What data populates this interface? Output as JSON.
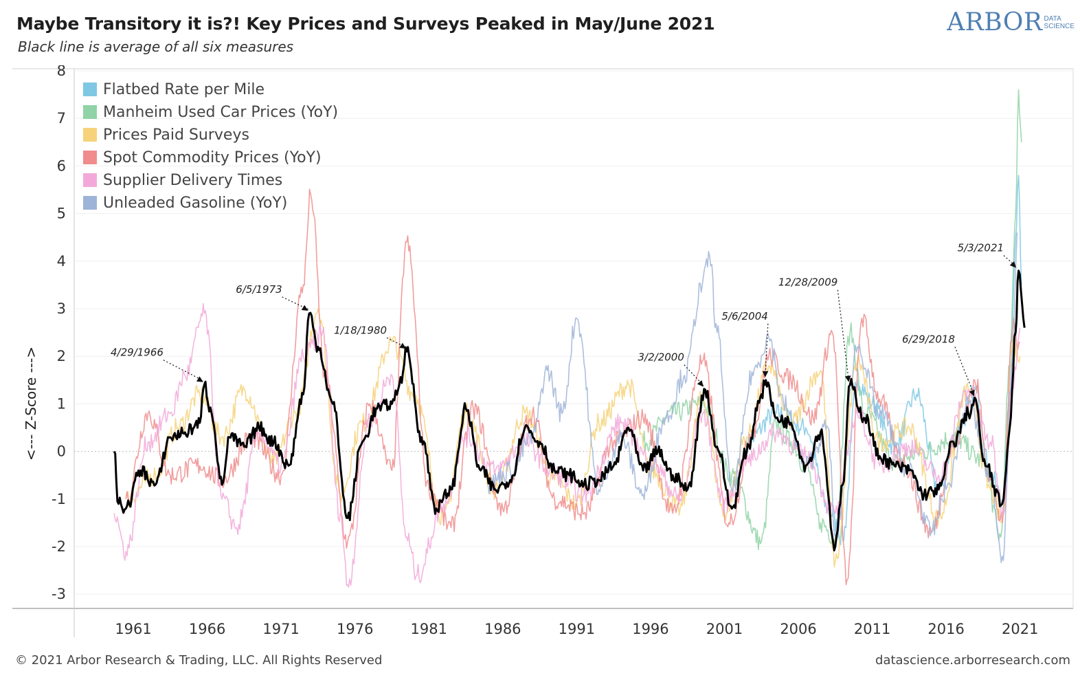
{
  "header": {
    "title": "Maybe Transitory it is?! Key Prices and Surveys Peaked in May/June 2021",
    "subtitle": "Black line is average of all six measures"
  },
  "logo": {
    "main": "ARBOR",
    "small_line1": "DATA",
    "small_line2": "SCIENCE"
  },
  "footer": {
    "copyright": "© 2021 Arbor Research & Trading, LLC. All Rights Reserved",
    "url": "datascience.arborresearch.com"
  },
  "chart_data": {
    "type": "line",
    "title": "Maybe Transitory it is?! Key Prices and Surveys Peaked in May/June 2021",
    "subtitle": "Black line is average of all six measures",
    "xlabel": "",
    "ylabel": "<--- Z-Score --->",
    "xlim": [
      1957.5,
      2025.0
    ],
    "ylim": [
      -3.3,
      8.0
    ],
    "x_ticks": [
      "1961",
      "1966",
      "1971",
      "1976",
      "1981",
      "1986",
      "1991",
      "1996",
      "2001",
      "2006",
      "2011",
      "2016",
      "2021"
    ],
    "y_ticks": [
      "8",
      "7",
      "6",
      "5",
      "4",
      "3",
      "2",
      "1",
      "0",
      "-1",
      "-2",
      "-3"
    ],
    "grid": true,
    "legend_placement": "top-left",
    "legend": [
      {
        "name": "Flatbed Rate per Mile",
        "color": "#7ec8e3"
      },
      {
        "name": "Manheim Used Car Prices (YoY)",
        "color": "#8fd3a6"
      },
      {
        "name": "Prices Paid Surveys",
        "color": "#f6d27a"
      },
      {
        "name": "Spot Commodity Prices (YoY)",
        "color": "#f08c8c"
      },
      {
        "name": "Supplier Delivery Times",
        "color": "#f2a9d9"
      },
      {
        "name": "Unleaded Gasoline (YoY)",
        "color": "#9db4d8"
      }
    ],
    "series": [
      {
        "name": "Flatbed Rate per Mile",
        "color": "#7ec8e3",
        "x": [
          2003,
          2005,
          2007,
          2008.5,
          2009.5,
          2010.5,
          2011.5,
          2013,
          2014.5,
          2016,
          2017.5,
          2018.5,
          2019.5,
          2020.3,
          2020.8,
          2021.2,
          2021.4,
          2021.6
        ],
        "y": [
          0.2,
          0.8,
          0.5,
          -1.2,
          -1.8,
          1.5,
          1.0,
          0.1,
          1.2,
          -0.8,
          0.6,
          1.3,
          -0.5,
          -1.0,
          1.0,
          4.5,
          5.8,
          3.5
        ]
      },
      {
        "name": "Manheim Used Car Prices (YoY)",
        "color": "#8fd3a6",
        "x": [
          1996,
          1998,
          2000,
          2002,
          2004,
          2005,
          2006,
          2007,
          2008,
          2009,
          2010,
          2011,
          2013,
          2015,
          2017,
          2019,
          2020.2,
          2020.8,
          2021.2,
          2021.4,
          2021.6
        ],
        "y": [
          0.2,
          0.8,
          1.0,
          -0.5,
          -1.9,
          0.6,
          0.2,
          -0.3,
          -1.5,
          -1.8,
          2.5,
          0.8,
          -0.2,
          0.0,
          0.3,
          -0.2,
          -1.8,
          1.8,
          5.0,
          7.6,
          6.5
        ]
      },
      {
        "name": "Prices Paid Surveys",
        "color": "#f6d27a",
        "x": [
          1961,
          1963,
          1964.5,
          1966,
          1967.5,
          1969,
          1971,
          1972.5,
          1974,
          1975.5,
          1977,
          1979,
          1980.5,
          1982.5,
          1984,
          1986,
          1988,
          1990,
          1991.5,
          1993,
          1995,
          1996.5,
          1998.5,
          2000,
          2001.5,
          2003,
          2004.5,
          2006,
          2008,
          2009,
          2010.5,
          2012,
          2014,
          2016,
          2018,
          2019.5,
          2020.3,
          2021,
          2021.5
        ],
        "y": [
          -1.0,
          -0.5,
          0.5,
          1.2,
          0.3,
          1.3,
          -0.2,
          0.8,
          3.0,
          -0.9,
          0.6,
          2.3,
          1.2,
          -1.4,
          0.8,
          -0.8,
          0.8,
          -0.6,
          -1.1,
          0.6,
          1.4,
          -0.4,
          -1.2,
          1.1,
          -1.3,
          0.3,
          1.8,
          0.6,
          1.7,
          -2.3,
          1.9,
          0.2,
          0.5,
          -1.4,
          1.3,
          -0.8,
          -1.5,
          2.3,
          2.0
        ]
      },
      {
        "name": "Spot Commodity Prices (YoY)",
        "color": "#f08c8c",
        "x": [
          1961,
          1962.5,
          1964,
          1966,
          1967.5,
          1969.5,
          1971.5,
          1973,
          1973.5,
          1974.5,
          1976,
          1977.5,
          1979,
          1980,
          1981.5,
          1983,
          1984.5,
          1986.5,
          1988.5,
          1990,
          1992,
          1994,
          1996,
          1998,
          2000,
          2001.8,
          2003.5,
          2004.5,
          2006,
          2007.5,
          2008.8,
          2009.8,
          2010.8,
          2012,
          2013.5,
          2015.5,
          2017,
          2018.5,
          2019.5,
          2020.3,
          2021,
          2021.5
        ],
        "y": [
          -1.0,
          0.8,
          -0.5,
          -0.3,
          -0.6,
          0.3,
          -0.5,
          3.5,
          5.4,
          1.5,
          -1.9,
          1.0,
          -0.4,
          4.4,
          -0.8,
          -1.6,
          0.9,
          -1.2,
          0.8,
          -1.0,
          -1.3,
          0.2,
          0.7,
          -1.3,
          1.9,
          -1.5,
          0.5,
          2.0,
          1.5,
          0.7,
          2.5,
          -2.7,
          2.8,
          1.1,
          -0.2,
          -1.7,
          0.1,
          1.4,
          -0.6,
          -1.5,
          2.6,
          2.3
        ]
      },
      {
        "name": "Supplier Delivery Times",
        "color": "#f2a9d9",
        "x": [
          1960.2,
          1961,
          1962.5,
          1964,
          1965,
          1966.3,
          1967.5,
          1968.5,
          1970,
          1971.5,
          1973,
          1974.3,
          1975.5,
          1976,
          1977.5,
          1979,
          1980,
          1980.7,
          1982.5,
          1984,
          1986,
          1988,
          1990,
          1992,
          1994.5,
          1996.5,
          1998.5,
          2000,
          2001.5,
          2003,
          2005,
          2007,
          2009,
          2010.5,
          2012,
          2014,
          2016,
          2018,
          2019.5,
          2020.4,
          2021,
          2021.5
        ],
        "y": [
          -1.3,
          -2.1,
          0.2,
          0.8,
          1.6,
          2.9,
          -1.0,
          -1.6,
          0.4,
          -0.3,
          2.0,
          2.5,
          -1.3,
          -2.8,
          0.7,
          1.6,
          -1.8,
          -2.6,
          -1.1,
          0.3,
          -0.4,
          0.2,
          -0.5,
          -0.9,
          0.6,
          -0.2,
          -1.0,
          0.8,
          -1.1,
          -0.2,
          0.4,
          -0.1,
          -1.3,
          0.8,
          -0.3,
          0.1,
          -0.5,
          1.3,
          0.2,
          -1.3,
          1.5,
          2.6
        ]
      },
      {
        "name": "Unleaded Gasoline (YoY)",
        "color": "#9db4d8",
        "x": [
          1985.5,
          1987,
          1988.5,
          1989.5,
          1990.5,
          1991.5,
          1993,
          1994.5,
          1996,
          1997.5,
          1998.8,
          2000,
          2000.5,
          2001,
          2002,
          2003.5,
          2004.5,
          2005.5,
          2007,
          2008.5,
          2009,
          2010.5,
          2012,
          2014,
          2015.5,
          2016.5,
          2018,
          2019.5,
          2020.3,
          2021,
          2021.3
        ],
        "y": [
          -0.7,
          -0.4,
          0.3,
          1.7,
          0.8,
          2.8,
          -0.8,
          0.3,
          -0.9,
          0.7,
          1.6,
          3.5,
          4.1,
          2.5,
          -0.8,
          1.7,
          2.4,
          1.0,
          -0.3,
          0.5,
          -1.8,
          2.2,
          0.8,
          -0.4,
          -1.7,
          -0.8,
          1.0,
          -0.5,
          -2.2,
          1.8,
          4.6
        ]
      },
      {
        "name": "Average",
        "color": "#000000",
        "x": [
          1960.2,
          1960.5,
          1961,
          1962,
          1963,
          1964,
          1965,
          1966,
          1966.3,
          1966.8,
          1967.5,
          1968,
          1969,
          1970,
          1971,
          1972,
          1973,
          1973.4,
          1974,
          1975,
          1976,
          1977,
          1978,
          1979,
          1979.5,
          1980,
          1981,
          1982,
          1983,
          1984,
          1985,
          1986,
          1987,
          1988,
          1989,
          1990,
          1991,
          1992,
          1993,
          1994,
          1995,
          1996,
          1997,
          1998,
          1999,
          2000.2,
          2001,
          2002,
          2003,
          2004,
          2004.3,
          2005,
          2006,
          2007,
          2008,
          2009,
          2009.5,
          2010,
          2011,
          2012,
          2013,
          2014,
          2015,
          2016,
          2017,
          2018,
          2018.5,
          2019,
          2020.3,
          2020.8,
          2021.2,
          2021.4,
          2021.8
        ],
        "y": [
          0.0,
          -1.1,
          -1.2,
          -0.4,
          -0.7,
          0.3,
          0.4,
          0.6,
          1.4,
          0.8,
          -0.7,
          0.3,
          0.1,
          0.5,
          0.2,
          -0.3,
          1.2,
          2.9,
          2.2,
          1.0,
          -1.4,
          0.2,
          0.9,
          1.0,
          1.4,
          2.1,
          0.3,
          -1.2,
          -0.8,
          0.9,
          -0.4,
          -0.8,
          -0.6,
          0.5,
          0.2,
          -0.4,
          -0.5,
          -0.7,
          -0.6,
          -0.3,
          0.5,
          -0.4,
          0.0,
          -0.5,
          -0.8,
          1.3,
          0.1,
          -1.2,
          0.0,
          1.2,
          1.5,
          0.7,
          0.6,
          -0.3,
          0.4,
          -2.0,
          -0.7,
          1.4,
          0.7,
          -0.1,
          -0.3,
          -0.4,
          -0.9,
          -0.8,
          0.2,
          0.8,
          1.1,
          -0.2,
          -1.1,
          0.5,
          2.5,
          3.8,
          2.6
        ]
      }
    ],
    "annotations": [
      {
        "label": "4/29/1966",
        "x": 1966.33,
        "y": 1.4
      },
      {
        "label": "6/5/1973",
        "x": 1973.43,
        "y": 2.9
      },
      {
        "label": "1/18/1980",
        "x": 1980.05,
        "y": 2.1
      },
      {
        "label": "3/2/2000",
        "x": 2000.17,
        "y": 1.3
      },
      {
        "label": "5/6/2004",
        "x": 2004.35,
        "y": 1.5
      },
      {
        "label": "12/28/2009",
        "x": 2010.0,
        "y": 1.4
      },
      {
        "label": "6/29/2018",
        "x": 2018.49,
        "y": 1.1
      },
      {
        "label": "5/3/2021",
        "x": 2021.33,
        "y": 3.8
      }
    ]
  }
}
